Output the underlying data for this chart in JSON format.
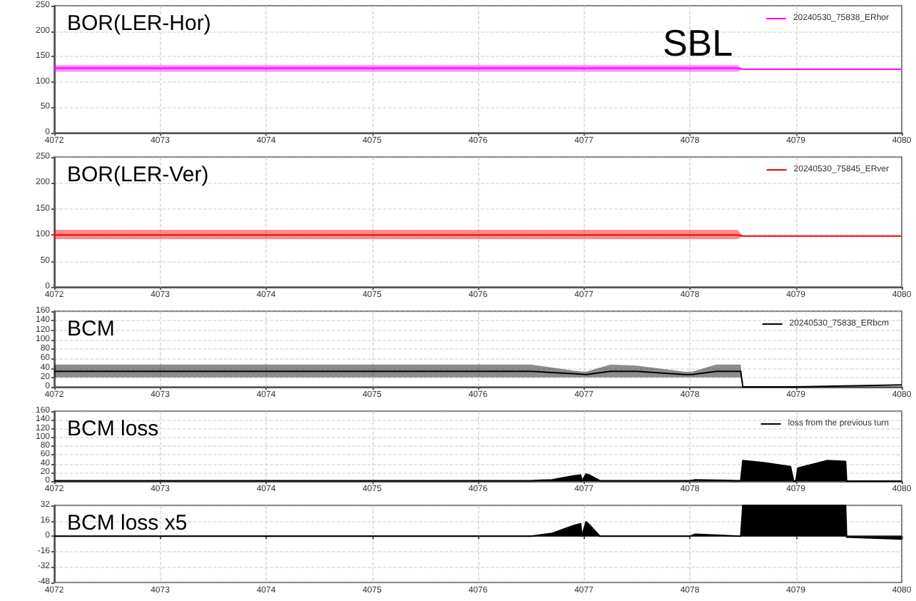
{
  "chart_data": [
    {
      "type": "line",
      "title": "BOR(LER-Hor)",
      "annotations": [
        "SBL"
      ],
      "xlim": [
        4072,
        4080
      ],
      "xticks": [
        4072,
        4073,
        4074,
        4075,
        4076,
        4077,
        4078,
        4079,
        4080
      ],
      "ylim": [
        0,
        250
      ],
      "yticks": [
        0,
        50,
        100,
        150,
        200,
        250
      ],
      "grid": true,
      "legend": "top right",
      "marker": "none",
      "series": [
        {
          "name": "20240530_75838_ERhor",
          "color": "#ff00ff",
          "x": [
            4072,
            4078.45,
            4078.5,
            4080
          ],
          "values": [
            127,
            127,
            125,
            125
          ],
          "lower": [
            120,
            120,
            125,
            125
          ],
          "upper": [
            133,
            133,
            125,
            125
          ]
        }
      ]
    },
    {
      "type": "line",
      "title": "BOR(LER-Ver)",
      "xlim": [
        4072,
        4080
      ],
      "xticks": [
        4072,
        4073,
        4074,
        4075,
        4076,
        4077,
        4078,
        4079,
        4080
      ],
      "ylim": [
        0,
        250
      ],
      "yticks": [
        0,
        50,
        100,
        150,
        200,
        250
      ],
      "grid": true,
      "legend": "top right",
      "marker": "none",
      "series": [
        {
          "name": "20240530_75845_ERver",
          "color": "#ff0000",
          "x": [
            4072,
            4078.45,
            4078.5,
            4080
          ],
          "values": [
            100,
            100,
            98,
            98
          ],
          "lower": [
            92,
            92,
            98,
            98
          ],
          "upper": [
            110,
            110,
            98,
            98
          ]
        }
      ]
    },
    {
      "type": "line",
      "title": "BCM",
      "xlim": [
        4072,
        4080
      ],
      "xticks": [
        4072,
        4073,
        4074,
        4075,
        4076,
        4077,
        4078,
        4079,
        4080
      ],
      "ylim": [
        0,
        160
      ],
      "yticks": [
        0,
        20,
        40,
        60,
        80,
        100,
        120,
        140,
        160
      ],
      "grid": true,
      "legend": "top right",
      "marker": "none",
      "series": [
        {
          "name": "20240530_75838_ERbcm",
          "color": "#000000",
          "x": [
            4072,
            4076.5,
            4076.95,
            4077.02,
            4077.25,
            4077.5,
            4077.95,
            4078.02,
            4078.25,
            4078.48,
            4078.5,
            4079,
            4080
          ],
          "values": [
            33,
            33,
            27,
            26,
            33,
            33,
            26,
            26,
            33,
            33,
            0,
            0,
            4
          ],
          "lower": [
            20,
            20,
            20,
            20,
            20,
            20,
            20,
            20,
            20,
            20,
            0,
            0,
            4
          ],
          "upper": [
            47,
            47,
            33,
            32,
            47,
            45,
            32,
            32,
            47,
            47,
            0,
            0,
            4
          ]
        }
      ]
    },
    {
      "type": "area",
      "title": "BCM loss",
      "xlim": [
        4072,
        4080
      ],
      "xticks": [
        4072,
        4073,
        4074,
        4075,
        4076,
        4077,
        4078,
        4079,
        4080
      ],
      "ylim": [
        0,
        160
      ],
      "yticks": [
        0,
        20,
        40,
        60,
        80,
        100,
        120,
        140,
        160
      ],
      "grid": true,
      "legend": "top right",
      "marker": "none",
      "series": [
        {
          "name": "loss from the previous turn",
          "color": "#000000",
          "x": [
            4072,
            4076.5,
            4076.7,
            4076.9,
            4076.97,
            4076.98,
            4077.02,
            4077.05,
            4077.15,
            4078,
            4078.05,
            4078.48,
            4078.5,
            4078.7,
            4078.95,
            4078.98,
            4079.0,
            4079.02,
            4079.3,
            4079.47,
            4079.48,
            4080
          ],
          "values": [
            1,
            1,
            3,
            12,
            14,
            0,
            16,
            14,
            1,
            1,
            3,
            1,
            47,
            42,
            33,
            0,
            0,
            30,
            47,
            45,
            0,
            0
          ]
        }
      ]
    },
    {
      "type": "area",
      "title": "BCM loss x5",
      "xlim": [
        4072,
        4080
      ],
      "xticks": [
        4072,
        4073,
        4074,
        4075,
        4076,
        4077,
        4078,
        4079,
        4080
      ],
      "ylim": [
        -48,
        32
      ],
      "yticks": [
        -48,
        -32,
        -16,
        0,
        16,
        32
      ],
      "grid": true,
      "marker": "none",
      "series": [
        {
          "color": "#000000",
          "x": [
            4072,
            4076.5,
            4076.7,
            4076.9,
            4076.97,
            4076.98,
            4077.02,
            4077.05,
            4077.15,
            4078,
            4078.05,
            4078.48,
            4078.5,
            4078.7,
            4078.95,
            4078.98,
            4079.0,
            4079.02,
            4079.3,
            4079.47,
            4079.48,
            4080
          ],
          "values": [
            0,
            0,
            3,
            11,
            13,
            0,
            15,
            12,
            0,
            0,
            2,
            0,
            32,
            32,
            32,
            32,
            32,
            32,
            32,
            32,
            -1,
            -3
          ]
        }
      ]
    }
  ]
}
